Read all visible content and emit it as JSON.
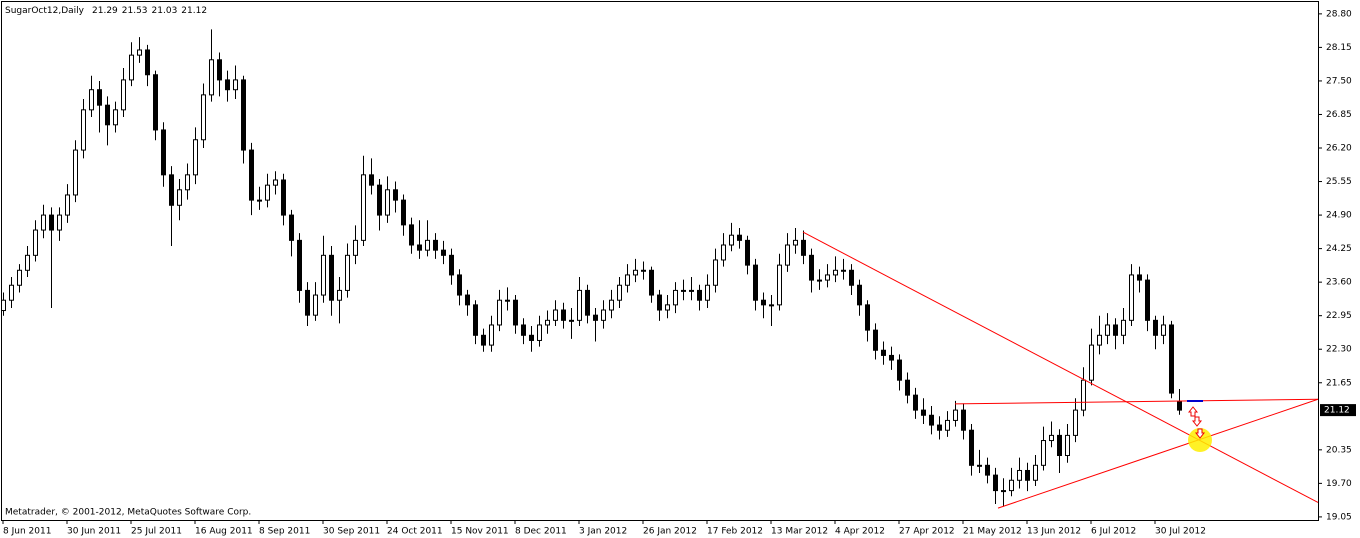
{
  "chart_data": {
    "type": "candlestick",
    "title": "SugarOct12,Daily",
    "footer": "Metatrader, © 2001-2012, MetaQuotes Software Corp.",
    "up_color": "#ffffff",
    "down_color": "#000000",
    "wick_color": "#000000",
    "xlim": [
      -0.125,
      164.375
    ],
    "ylim": [
      18.99,
      29.03
    ],
    "yticks": [
      {
        "value": 28.8,
        "label": "28.80"
      },
      28.15,
      {
        "value": 27.5,
        "label": "27.50"
      },
      26.85,
      {
        "value": 26.2,
        "label": "26.20"
      },
      25.55,
      {
        "value": 24.9,
        "label": "24.90"
      },
      24.25,
      {
        "value": 23.6,
        "label": "23.60"
      },
      22.95,
      {
        "value": 22.3,
        "label": "22.30"
      },
      21.65,
      20.35,
      {
        "value": 19.7,
        "label": "19.70"
      },
      19.05
    ],
    "categories": [
      "8 Jun 2011",
      null,
      null,
      null,
      null,
      null,
      null,
      null,
      "30 Jun 2011",
      null,
      null,
      null,
      null,
      null,
      null,
      null,
      "25 Jul 2011",
      null,
      null,
      null,
      null,
      null,
      null,
      null,
      "16 Aug 2011",
      null,
      null,
      null,
      null,
      null,
      null,
      null,
      "8 Sep 2011",
      null,
      null,
      null,
      null,
      null,
      null,
      null,
      "30 Sep 2011",
      null,
      null,
      null,
      null,
      null,
      null,
      null,
      "24 Oct 2011",
      null,
      null,
      null,
      null,
      null,
      null,
      null,
      "15 Nov 2011",
      null,
      null,
      null,
      null,
      null,
      null,
      null,
      "8 Dec 2011",
      null,
      null,
      null,
      null,
      null,
      null,
      null,
      "3 Jan 2012",
      null,
      null,
      null,
      null,
      null,
      null,
      null,
      "26 Jan 2012",
      null,
      null,
      null,
      null,
      null,
      null,
      null,
      "17 Feb 2012",
      null,
      null,
      null,
      null,
      null,
      null,
      null,
      "13 Mar 2012",
      null,
      null,
      null,
      null,
      null,
      null,
      null,
      "4 Apr 2012",
      null,
      null,
      null,
      null,
      null,
      null,
      null,
      "27 Apr 2012",
      null,
      null,
      null,
      null,
      null,
      null,
      null,
      "21 May 2012",
      null,
      null,
      null,
      null,
      null,
      null,
      null,
      "13 Jun 2012",
      null,
      null,
      null,
      null,
      null,
      null,
      null,
      "6 Jul 2012",
      null,
      null,
      null,
      null,
      null,
      null,
      null,
      "30 Jul 2012",
      null,
      null,
      null
    ],
    "ohlc": [
      [
        23.05,
        23.4,
        22.95,
        23.25
      ],
      [
        23.25,
        23.7,
        23.1,
        23.54
      ],
      [
        23.54,
        23.95,
        23.4,
        23.83
      ],
      [
        23.83,
        24.3,
        23.7,
        24.12
      ],
      [
        24.12,
        24.8,
        24.0,
        24.61
      ],
      [
        24.61,
        25.1,
        24.45,
        24.9
      ],
      [
        24.9,
        25.05,
        23.1,
        24.61
      ],
      [
        24.61,
        25.05,
        24.4,
        24.9
      ],
      [
        24.9,
        25.5,
        24.75,
        25.29
      ],
      [
        25.29,
        26.35,
        25.15,
        26.16
      ],
      [
        26.16,
        27.15,
        26.0,
        26.94
      ],
      [
        26.94,
        27.6,
        26.8,
        27.33
      ],
      [
        27.33,
        27.5,
        26.5,
        27.03
      ],
      [
        27.03,
        27.2,
        26.25,
        26.65
      ],
      [
        26.65,
        27.1,
        26.5,
        26.94
      ],
      [
        26.94,
        27.75,
        26.8,
        27.52
      ],
      [
        27.52,
        28.25,
        27.4,
        28.0
      ],
      [
        28.0,
        28.35,
        27.85,
        28.1
      ],
      [
        28.1,
        28.2,
        27.4,
        27.62
      ],
      [
        27.62,
        27.7,
        26.35,
        26.55
      ],
      [
        26.55,
        26.7,
        25.45,
        25.68
      ],
      [
        25.68,
        25.85,
        24.3,
        25.09
      ],
      [
        25.09,
        25.6,
        24.8,
        25.39
      ],
      [
        25.39,
        25.9,
        25.2,
        25.68
      ],
      [
        25.68,
        26.6,
        25.5,
        26.36
      ],
      [
        26.36,
        27.45,
        26.2,
        27.23
      ],
      [
        27.23,
        28.5,
        27.1,
        27.91
      ],
      [
        27.91,
        28.05,
        27.2,
        27.52
      ],
      [
        27.52,
        27.7,
        27.1,
        27.33
      ],
      [
        27.33,
        27.8,
        27.15,
        27.52
      ],
      [
        27.52,
        27.6,
        25.9,
        26.16
      ],
      [
        26.16,
        26.3,
        24.9,
        25.19
      ],
      [
        25.19,
        25.45,
        25.0,
        25.19
      ],
      [
        25.19,
        25.7,
        25.05,
        25.48
      ],
      [
        25.48,
        25.75,
        25.3,
        25.58
      ],
      [
        25.58,
        25.7,
        24.7,
        24.9
      ],
      [
        24.9,
        25.0,
        24.1,
        24.41
      ],
      [
        24.41,
        24.55,
        23.2,
        23.44
      ],
      [
        23.44,
        23.6,
        22.75,
        22.96
      ],
      [
        22.96,
        23.6,
        22.85,
        23.35
      ],
      [
        23.35,
        24.5,
        23.2,
        24.12
      ],
      [
        24.12,
        24.3,
        22.95,
        23.25
      ],
      [
        23.25,
        23.7,
        22.8,
        23.44
      ],
      [
        23.44,
        24.35,
        23.3,
        24.12
      ],
      [
        24.12,
        24.7,
        23.95,
        24.41
      ],
      [
        24.41,
        26.05,
        24.3,
        25.68
      ],
      [
        25.68,
        26.0,
        25.3,
        25.48
      ],
      [
        25.48,
        25.6,
        24.6,
        24.9
      ],
      [
        24.9,
        25.65,
        24.75,
        25.39
      ],
      [
        25.39,
        25.55,
        24.95,
        25.19
      ],
      [
        25.19,
        25.3,
        24.5,
        24.71
      ],
      [
        24.71,
        24.85,
        24.15,
        24.32
      ],
      [
        24.32,
        24.8,
        24.05,
        24.22
      ],
      [
        24.22,
        24.8,
        24.1,
        24.41
      ],
      [
        24.41,
        24.55,
        24.05,
        24.22
      ],
      [
        24.22,
        24.4,
        23.95,
        24.12
      ],
      [
        24.12,
        24.25,
        23.55,
        23.74
      ],
      [
        23.74,
        23.85,
        23.15,
        23.35
      ],
      [
        23.35,
        23.45,
        22.95,
        23.16
      ],
      [
        23.16,
        23.25,
        22.4,
        22.57
      ],
      [
        22.57,
        22.7,
        22.25,
        22.38
      ],
      [
        22.38,
        22.95,
        22.25,
        22.77
      ],
      [
        22.77,
        23.45,
        22.65,
        23.25
      ],
      [
        23.25,
        23.5,
        23.05,
        23.25
      ],
      [
        23.25,
        23.35,
        22.6,
        22.77
      ],
      [
        22.77,
        22.9,
        22.4,
        22.57
      ],
      [
        22.57,
        22.75,
        22.25,
        22.47
      ],
      [
        22.47,
        22.95,
        22.35,
        22.77
      ],
      [
        22.77,
        23.05,
        22.6,
        22.86
      ],
      [
        22.86,
        23.25,
        22.75,
        23.06
      ],
      [
        23.06,
        23.2,
        22.7,
        22.86
      ],
      [
        22.86,
        23.1,
        22.5,
        22.86
      ],
      [
        22.86,
        23.7,
        22.75,
        23.44
      ],
      [
        23.44,
        23.55,
        22.8,
        22.96
      ],
      [
        22.96,
        23.1,
        22.45,
        22.86
      ],
      [
        22.86,
        23.25,
        22.7,
        23.06
      ],
      [
        23.06,
        23.45,
        22.9,
        23.25
      ],
      [
        23.25,
        23.7,
        23.1,
        23.54
      ],
      [
        23.54,
        23.95,
        23.4,
        23.74
      ],
      [
        23.74,
        24.05,
        23.6,
        23.83
      ],
      [
        23.83,
        24.0,
        23.65,
        23.83
      ],
      [
        23.83,
        23.9,
        23.2,
        23.35
      ],
      [
        23.35,
        23.45,
        22.85,
        23.06
      ],
      [
        23.06,
        23.35,
        22.9,
        23.16
      ],
      [
        23.16,
        23.6,
        23.0,
        23.44
      ],
      [
        23.44,
        23.65,
        23.25,
        23.44
      ],
      [
        23.44,
        23.7,
        23.25,
        23.44
      ],
      [
        23.44,
        23.55,
        23.05,
        23.25
      ],
      [
        23.25,
        23.75,
        23.1,
        23.54
      ],
      [
        23.54,
        24.25,
        23.4,
        24.03
      ],
      [
        24.03,
        24.55,
        23.9,
        24.32
      ],
      [
        24.32,
        24.75,
        24.2,
        24.51
      ],
      [
        24.51,
        24.65,
        24.25,
        24.41
      ],
      [
        24.41,
        24.5,
        23.75,
        23.93
      ],
      [
        23.93,
        24.05,
        23.05,
        23.25
      ],
      [
        23.25,
        23.4,
        22.9,
        23.16
      ],
      [
        23.16,
        23.35,
        22.75,
        23.16
      ],
      [
        23.16,
        24.15,
        23.05,
        23.93
      ],
      [
        23.93,
        24.55,
        23.8,
        24.32
      ],
      [
        24.32,
        24.65,
        24.15,
        24.41
      ],
      [
        24.41,
        24.6,
        23.95,
        24.12
      ],
      [
        24.12,
        24.25,
        23.4,
        23.64
      ],
      [
        23.64,
        23.85,
        23.45,
        23.64
      ],
      [
        23.64,
        23.95,
        23.5,
        23.74
      ],
      [
        23.74,
        24.1,
        23.6,
        23.83
      ],
      [
        23.83,
        24.05,
        23.65,
        23.83
      ],
      [
        23.83,
        23.95,
        23.35,
        23.54
      ],
      [
        23.54,
        23.65,
        22.95,
        23.16
      ],
      [
        23.16,
        23.25,
        22.45,
        22.67
      ],
      [
        22.67,
        22.8,
        22.1,
        22.28
      ],
      [
        22.28,
        22.45,
        22.0,
        22.18
      ],
      [
        22.18,
        22.35,
        21.9,
        22.09
      ],
      [
        22.09,
        22.2,
        21.5,
        21.7
      ],
      [
        21.7,
        21.85,
        21.25,
        21.41
      ],
      [
        21.41,
        21.55,
        20.95,
        21.12
      ],
      [
        21.12,
        21.35,
        20.85,
        21.02
      ],
      [
        21.02,
        21.2,
        20.65,
        20.83
      ],
      [
        20.83,
        21.0,
        20.55,
        20.73
      ],
      [
        20.73,
        21.1,
        20.6,
        20.92
      ],
      [
        20.92,
        21.3,
        20.8,
        21.12
      ],
      [
        21.12,
        21.25,
        20.55,
        20.73
      ],
      [
        20.73,
        20.85,
        19.85,
        20.05
      ],
      [
        20.05,
        20.35,
        19.9,
        20.05
      ],
      [
        20.05,
        20.2,
        19.7,
        19.86
      ],
      [
        19.86,
        20.0,
        19.3,
        19.56
      ],
      [
        19.56,
        19.8,
        19.25,
        19.56
      ],
      [
        19.56,
        20.0,
        19.45,
        19.76
      ],
      [
        19.76,
        20.2,
        19.6,
        19.95
      ],
      [
        19.95,
        20.1,
        19.55,
        19.76
      ],
      [
        19.76,
        20.25,
        19.65,
        20.05
      ],
      [
        20.05,
        20.8,
        19.95,
        20.53
      ],
      [
        20.53,
        20.9,
        20.4,
        20.63
      ],
      [
        20.63,
        20.75,
        19.9,
        20.24
      ],
      [
        20.24,
        20.85,
        20.1,
        20.63
      ],
      [
        20.63,
        21.35,
        20.5,
        21.12
      ],
      [
        21.12,
        21.95,
        21.0,
        21.7
      ],
      [
        21.7,
        22.7,
        21.6,
        22.38
      ],
      [
        22.38,
        22.95,
        22.2,
        22.57
      ],
      [
        22.57,
        23.0,
        22.4,
        22.77
      ],
      [
        22.77,
        22.9,
        22.3,
        22.57
      ],
      [
        22.57,
        23.1,
        22.4,
        22.86
      ],
      [
        22.86,
        23.95,
        22.75,
        23.74
      ],
      [
        23.74,
        23.9,
        23.4,
        23.64
      ],
      [
        23.64,
        23.75,
        22.65,
        22.86
      ],
      [
        22.86,
        22.95,
        22.3,
        22.57
      ],
      [
        22.57,
        22.95,
        22.4,
        22.77
      ],
      [
        22.77,
        22.85,
        21.35,
        21.45
      ],
      [
        21.29,
        21.53,
        21.03,
        21.12
      ]
    ],
    "trendline_color": "#ff0000",
    "trendlines": [
      {
        "x": [
          100,
          164.375
        ],
        "y": [
          24.57,
          19.33
        ]
      },
      {
        "x": [
          119,
          164.375
        ],
        "y": [
          21.24,
          21.33
        ]
      },
      {
        "x": [
          124.375,
          164.375
        ],
        "y": [
          19.22,
          21.33
        ]
      }
    ]
  }
}
